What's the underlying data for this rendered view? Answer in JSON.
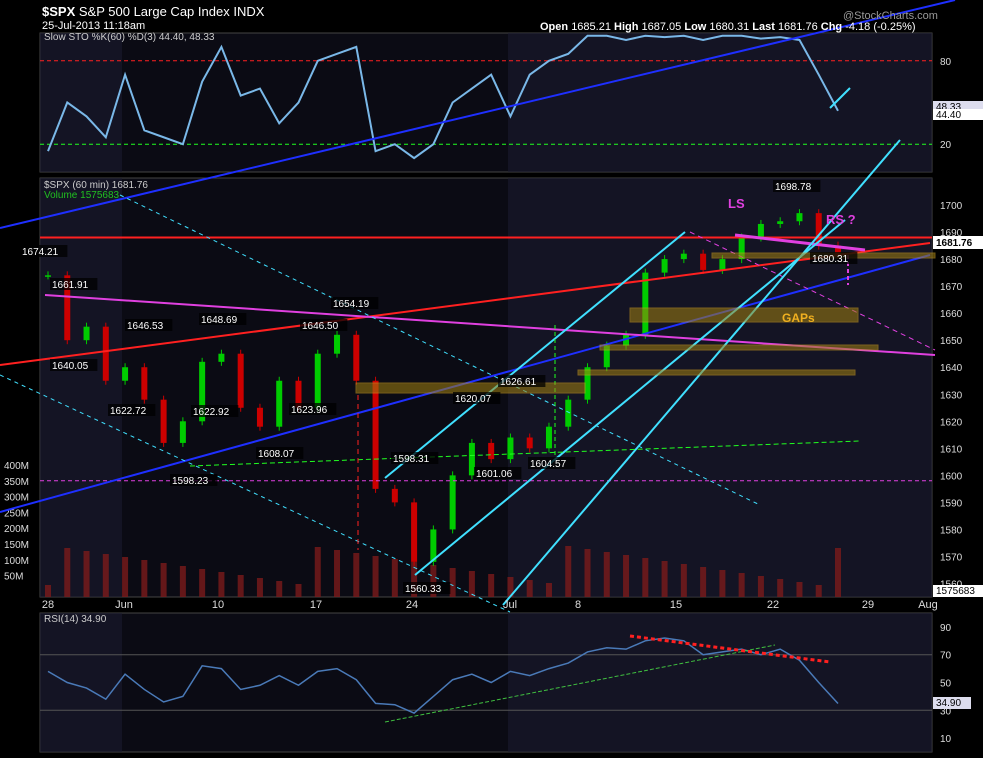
{
  "header": {
    "symbol": "$SPX",
    "name": "S&P 500 Large Cap Index",
    "exchange": "INDX",
    "date": "25-Jul-2013 11:18am",
    "watermark": "@StockCharts.com",
    "open_label": "Open",
    "open": "1685.21",
    "high_label": "High",
    "high": "1687.05",
    "low_label": "Low",
    "low": "1680.31",
    "last_label": "Last",
    "last": "1681.76",
    "chg_label": "Chg",
    "chg": "-4.18 (-0.25%)"
  },
  "colors": {
    "background": "#000000",
    "panel": "#0b0b14",
    "shade": "#1a1a2e",
    "price_up": "#00cc00",
    "price_down": "#cc0000",
    "channel_cyan": "#40e0ff",
    "trend_blue": "#1e2fff",
    "trend_red": "#ff2020",
    "magenta": "#e040e0",
    "gap_gold": "#a08010"
  },
  "chart_data": [
    {
      "type": "line",
      "panel": "stochastic",
      "legend_label": "Slow STO %K(60) %D(3)",
      "legend_values": [
        "44.40",
        "48.33"
      ],
      "ylim": [
        0,
        100
      ],
      "y_ticks": [
        "80",
        "20"
      ],
      "levels": [
        80,
        20
      ],
      "last_value_tags": [
        "48.33",
        "44.40"
      ],
      "series": [
        {
          "x": [
            "2013-05-28",
            "2013-05-29",
            "2013-05-30",
            "2013-05-31",
            "2013-06-03",
            "2013-06-04",
            "2013-06-05",
            "2013-06-06",
            "2013-06-07",
            "2013-06-10",
            "2013-06-11",
            "2013-06-12",
            "2013-06-13",
            "2013-06-14",
            "2013-06-17",
            "2013-06-18",
            "2013-06-19",
            "2013-06-20",
            "2013-06-21",
            "2013-06-24",
            "2013-06-25",
            "2013-06-26",
            "2013-06-27",
            "2013-06-28",
            "2013-07-01",
            "2013-07-02",
            "2013-07-03",
            "2013-07-05",
            "2013-07-08",
            "2013-07-09",
            "2013-07-10",
            "2013-07-11",
            "2013-07-12",
            "2013-07-15",
            "2013-07-16",
            "2013-07-17",
            "2013-07-18",
            "2013-07-19",
            "2013-07-22",
            "2013-07-23",
            "2013-07-24",
            "2013-07-25"
          ],
          "values": [
            15,
            50,
            40,
            25,
            70,
            30,
            25,
            20,
            65,
            90,
            55,
            60,
            35,
            50,
            80,
            85,
            90,
            15,
            20,
            10,
            20,
            50,
            60,
            70,
            40,
            70,
            80,
            85,
            98,
            98,
            95,
            98,
            97,
            98,
            95,
            98,
            98,
            96,
            97,
            95,
            70,
            44
          ]
        }
      ]
    },
    {
      "type": "line",
      "panel": "price",
      "legend_label": "$SPX (60 min)",
      "legend_value": "1681.76",
      "volume_label": "Volume",
      "volume_value": "1575683",
      "ylim": [
        1555,
        1710
      ],
      "y_ticks": [
        "1700",
        "1690",
        "1680",
        "1670",
        "1660",
        "1650",
        "1640",
        "1630",
        "1620",
        "1610",
        "1600",
        "1590",
        "1580",
        "1570",
        "1560"
      ],
      "last_value_tag": "1681.76",
      "x_labels": [
        "28",
        "Jun",
        "10",
        "17",
        "24",
        "Jul",
        "8",
        "15",
        "22",
        "29",
        "Aug"
      ],
      "series": [
        {
          "x": [
            "2013-05-28",
            "2013-05-29",
            "2013-05-30",
            "2013-05-31",
            "2013-06-03",
            "2013-06-04",
            "2013-06-05",
            "2013-06-06",
            "2013-06-07",
            "2013-06-10",
            "2013-06-11",
            "2013-06-12",
            "2013-06-13",
            "2013-06-14",
            "2013-06-17",
            "2013-06-18",
            "2013-06-19",
            "2013-06-20",
            "2013-06-21",
            "2013-06-24",
            "2013-06-25",
            "2013-06-26",
            "2013-06-27",
            "2013-06-28",
            "2013-07-01",
            "2013-07-02",
            "2013-07-03",
            "2013-07-05",
            "2013-07-08",
            "2013-07-09",
            "2013-07-10",
            "2013-07-11",
            "2013-07-12",
            "2013-07-15",
            "2013-07-16",
            "2013-07-17",
            "2013-07-18",
            "2013-07-19",
            "2013-07-22",
            "2013-07-23",
            "2013-07-24",
            "2013-07-25"
          ],
          "values": [
            1674,
            1650,
            1655,
            1635,
            1640,
            1628,
            1612,
            1620,
            1642,
            1645,
            1625,
            1618,
            1635,
            1625,
            1645,
            1652,
            1635,
            1595,
            1590,
            1568,
            1580,
            1600,
            1612,
            1606,
            1614,
            1610,
            1618,
            1628,
            1640,
            1648,
            1652,
            1675,
            1680,
            1682,
            1676,
            1680,
            1688,
            1693,
            1694,
            1697,
            1685,
            1681.76
          ]
        }
      ],
      "price_labels": [
        "1674.21",
        "1661.91",
        "1640.05",
        "1646.53",
        "1622.72",
        "1648.69",
        "1622.92",
        "1623.96",
        "1608.07",
        "1598.23",
        "1646.50",
        "1654.19",
        "1560.33",
        "1598.31",
        "1620.07",
        "1626.61",
        "1601.06",
        "1604.57",
        "1698.78",
        "1680.31"
      ],
      "volume_axis_labels": [
        "400M",
        "350M",
        "300M",
        "250M",
        "200M",
        "150M",
        "100M",
        "50M"
      ],
      "annotations": [
        "LS",
        "RS ?",
        "GAPs"
      ]
    },
    {
      "type": "line",
      "panel": "rsi",
      "legend_label": "RSI(14)",
      "legend_value": "34.90",
      "ylim": [
        0,
        100
      ],
      "y_ticks": [
        "90",
        "70",
        "50",
        "30",
        "10"
      ],
      "levels": [
        70,
        30
      ],
      "last_value_tag": "34.90",
      "series": [
        {
          "x": [
            "2013-05-28",
            "2013-05-29",
            "2013-05-30",
            "2013-05-31",
            "2013-06-03",
            "2013-06-04",
            "2013-06-05",
            "2013-06-06",
            "2013-06-07",
            "2013-06-10",
            "2013-06-11",
            "2013-06-12",
            "2013-06-13",
            "2013-06-14",
            "2013-06-17",
            "2013-06-18",
            "2013-06-19",
            "2013-06-20",
            "2013-06-21",
            "2013-06-24",
            "2013-06-25",
            "2013-06-26",
            "2013-06-27",
            "2013-06-28",
            "2013-07-01",
            "2013-07-02",
            "2013-07-03",
            "2013-07-05",
            "2013-07-08",
            "2013-07-09",
            "2013-07-10",
            "2013-07-11",
            "2013-07-12",
            "2013-07-15",
            "2013-07-16",
            "2013-07-17",
            "2013-07-18",
            "2013-07-19",
            "2013-07-22",
            "2013-07-23",
            "2013-07-24",
            "2013-07-25"
          ],
          "values": [
            58,
            50,
            46,
            38,
            56,
            45,
            36,
            40,
            62,
            60,
            45,
            48,
            55,
            48,
            58,
            60,
            52,
            35,
            34,
            28,
            40,
            52,
            56,
            50,
            58,
            55,
            60,
            64,
            72,
            75,
            74,
            80,
            82,
            80,
            70,
            72,
            74,
            70,
            74,
            66,
            50,
            34.9
          ]
        }
      ]
    }
  ]
}
